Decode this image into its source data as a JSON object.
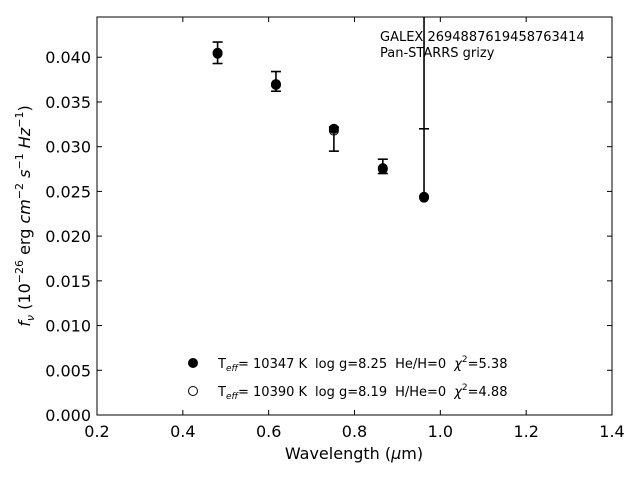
{
  "chart_data": {
    "type": "scatter",
    "annotation_lines": [
      "GALEX 2694887619458763414",
      "Pan-STARRS grizy"
    ],
    "xlabel": "Wavelength (μm)",
    "ylabel": "f_ν (10^-26 erg cm^-2 s^-1 Hz^-1)",
    "xlim": [
      0.2,
      1.4
    ],
    "ylim": [
      0.0,
      0.0445
    ],
    "xticks": [
      0.2,
      0.4,
      0.6,
      0.8,
      1.0,
      1.2,
      1.4
    ],
    "xtick_labels": [
      "0.2",
      "0.4",
      "0.6",
      "0.8",
      "1.0",
      "1.2",
      "1.4"
    ],
    "yticks": [
      0.0,
      0.005,
      0.01,
      0.015,
      0.02,
      0.025,
      0.03,
      0.035,
      0.04
    ],
    "ytick_labels": [
      "0.000",
      "0.005",
      "0.010",
      "0.015",
      "0.020",
      "0.025",
      "0.030",
      "0.035",
      "0.040"
    ],
    "grid": false,
    "legend_position": "lower-center",
    "observed": {
      "x": [
        0.481,
        0.617,
        0.752,
        0.866,
        0.962
      ],
      "y": [
        0.0405,
        0.037,
        0.0319,
        0.0276,
        0.0244
      ],
      "err_lo": [
        0.0393,
        0.0362,
        0.0295,
        0.027,
        0.0244
      ],
      "err_hi": [
        0.0417,
        0.0384,
        0.0322,
        0.0286,
        0.0445
      ],
      "err_hi_top_clipped": [
        false,
        false,
        false,
        false,
        true
      ],
      "err_lo_cap": [
        true,
        true,
        true,
        true,
        true
      ],
      "err_lo_cap_values": [
        0.0393,
        0.0362,
        0.0295,
        0.027,
        0.032
      ]
    },
    "series": [
      {
        "name": "T_eff= 10347 K  log g=8.25  He/H=0  χ²=5.38",
        "marker": "filled-circle",
        "x": [
          0.481,
          0.617,
          0.752,
          0.866,
          0.962
        ],
        "y": [
          0.0405,
          0.037,
          0.032,
          0.0276,
          0.0244
        ]
      },
      {
        "name": "T_eff= 10390 K  log g=8.19  H/He=0  χ²=4.88",
        "marker": "open-circle",
        "x": [
          0.481,
          0.617,
          0.752,
          0.866,
          0.962
        ],
        "y": [
          0.0404,
          0.0369,
          0.0318,
          0.0275,
          0.0243
        ]
      }
    ],
    "legend": [
      {
        "teff": "= 10347 K",
        "logg": "log g=8.25",
        "comp": "He/H=0",
        "chi": "=5.38"
      },
      {
        "teff": "= 10390 K",
        "logg": "log g=8.19",
        "comp": "H/He=0",
        "chi": "=4.88"
      }
    ],
    "colors": {
      "marker": "#000000",
      "axis": "#000000",
      "background": "#ffffff"
    }
  }
}
